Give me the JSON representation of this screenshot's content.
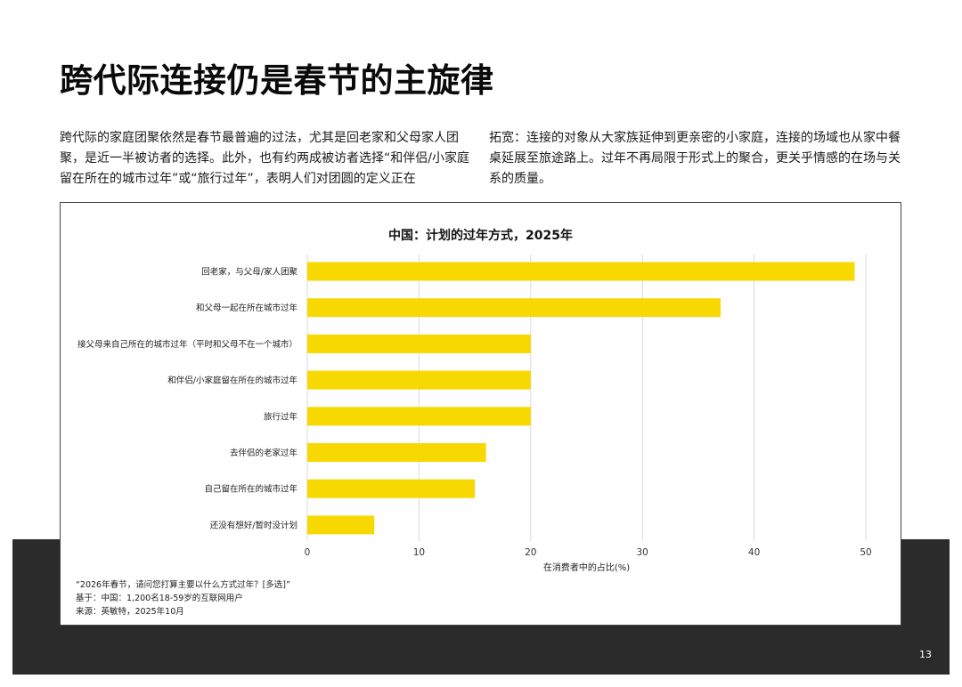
{
  "page": {
    "title": "跨代际连接仍是春节的主旋律",
    "intro_left": "跨代际的家庭团聚依然是春节最普遍的过法，尤其是回老家和父母家人团聚，是近一半被访者的选择。此外，也有约两成被访者选择“和伴侣/小家庭留在所在的城市过年”或“旅行过年”，表明人们对团圆的定义正在",
    "intro_right": "拓宽：连接的对象从大家族延伸到更亲密的小家庭，连接的场域也从家中餐桌延展至旅途路上。过年不再局限于形式上的聚合，更关乎情感的在场与关系的质量。",
    "page_number": "13"
  },
  "chart_data": {
    "type": "bar",
    "orientation": "horizontal",
    "title": "中国：计划的过年方式，2025年",
    "xlabel": "在消费者中的占比(%)",
    "ylabel": "",
    "xlim": [
      0,
      50
    ],
    "xticks": [
      0,
      10,
      20,
      30,
      40,
      50
    ],
    "grid": true,
    "categories": [
      "回老家，与父母/家人团聚",
      "和父母一起在所在城市过年",
      "接父母来自己所在的城市过年（平时和父母不在一个城市）",
      "和伴侣/小家庭留在所在的城市过年",
      "旅行过年",
      "去伴侣的老家过年",
      "自己留在所在的城市过年",
      "还没有想好/暂时没计划"
    ],
    "values": [
      49,
      37,
      20,
      20,
      20,
      16,
      15,
      6
    ],
    "bar_color": "#f7d800",
    "notes": [
      "“2026年春节，请问您打算主要以什么方式过年？[多选]”",
      "基于：中国：1,200名18-59岁的互联网用户",
      "来源：英敏特，2025年10月"
    ]
  },
  "colors": {
    "band": "#2b2b2b",
    "bar": "#f7d800",
    "grid": "#d9d9d9"
  }
}
